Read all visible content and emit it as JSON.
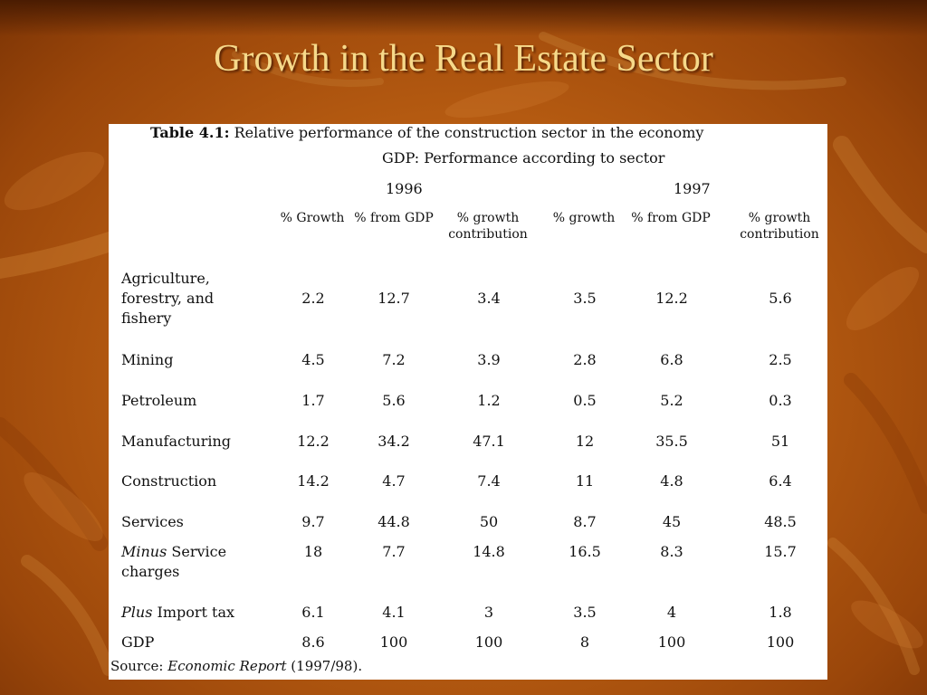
{
  "slide": {
    "title": "Growth in the Real Estate Sector"
  },
  "table": {
    "caption_label": "Table 4.1:",
    "caption_text": "Relative performance of the construction sector  in the economy",
    "subheading": "GDP: Performance according to sector",
    "years": [
      "1996",
      "1997"
    ],
    "columns": [
      "% Growth",
      "% from GDP",
      "% growth contribution",
      "% growth",
      "% from GDP",
      "% growth contribution"
    ],
    "rows": [
      {
        "prefix": "",
        "label": "Agriculture, forestry, and fishery",
        "values": [
          "2.2",
          "12.7",
          "3.4",
          "3.5",
          "12.2",
          "5.6"
        ]
      },
      {
        "prefix": "",
        "label": "Mining",
        "values": [
          "4.5",
          "7.2",
          "3.9",
          "2.8",
          "6.8",
          "2.5"
        ]
      },
      {
        "prefix": "",
        "label": "Petroleum",
        "values": [
          "1.7",
          "5.6",
          "1.2",
          "0.5",
          "5.2",
          "0.3"
        ]
      },
      {
        "prefix": "",
        "label": "Manufacturing",
        "values": [
          "12.2",
          "34.2",
          "47.1",
          "12",
          "35.5",
          "51"
        ]
      },
      {
        "prefix": "",
        "label": "Construction",
        "values": [
          "14.2",
          "4.7",
          "7.4",
          "11",
          "4.8",
          "6.4"
        ]
      },
      {
        "prefix": "",
        "label": "Services",
        "values": [
          "9.7",
          "44.8",
          "50",
          "8.7",
          "45",
          "48.5"
        ]
      },
      {
        "prefix": "Minus",
        "label": " Service charges",
        "values": [
          "18",
          "7.7",
          "14.8",
          "16.5",
          "8.3",
          "15.7"
        ]
      },
      {
        "prefix": "Plus",
        "label": " Import tax",
        "values": [
          "6.1",
          "4.1",
          "3",
          "3.5",
          "4",
          "1.8"
        ]
      },
      {
        "prefix": "",
        "label": "GDP",
        "values": [
          "8.6",
          "100",
          "100",
          "8",
          "100",
          "100"
        ]
      }
    ],
    "source_label": "Source:",
    "source_title": "Economic Report",
    "source_year": " (1997/98)."
  },
  "colors": {
    "background": "#b85a10",
    "title": "#f6d98a",
    "panel": "#ffffff"
  }
}
